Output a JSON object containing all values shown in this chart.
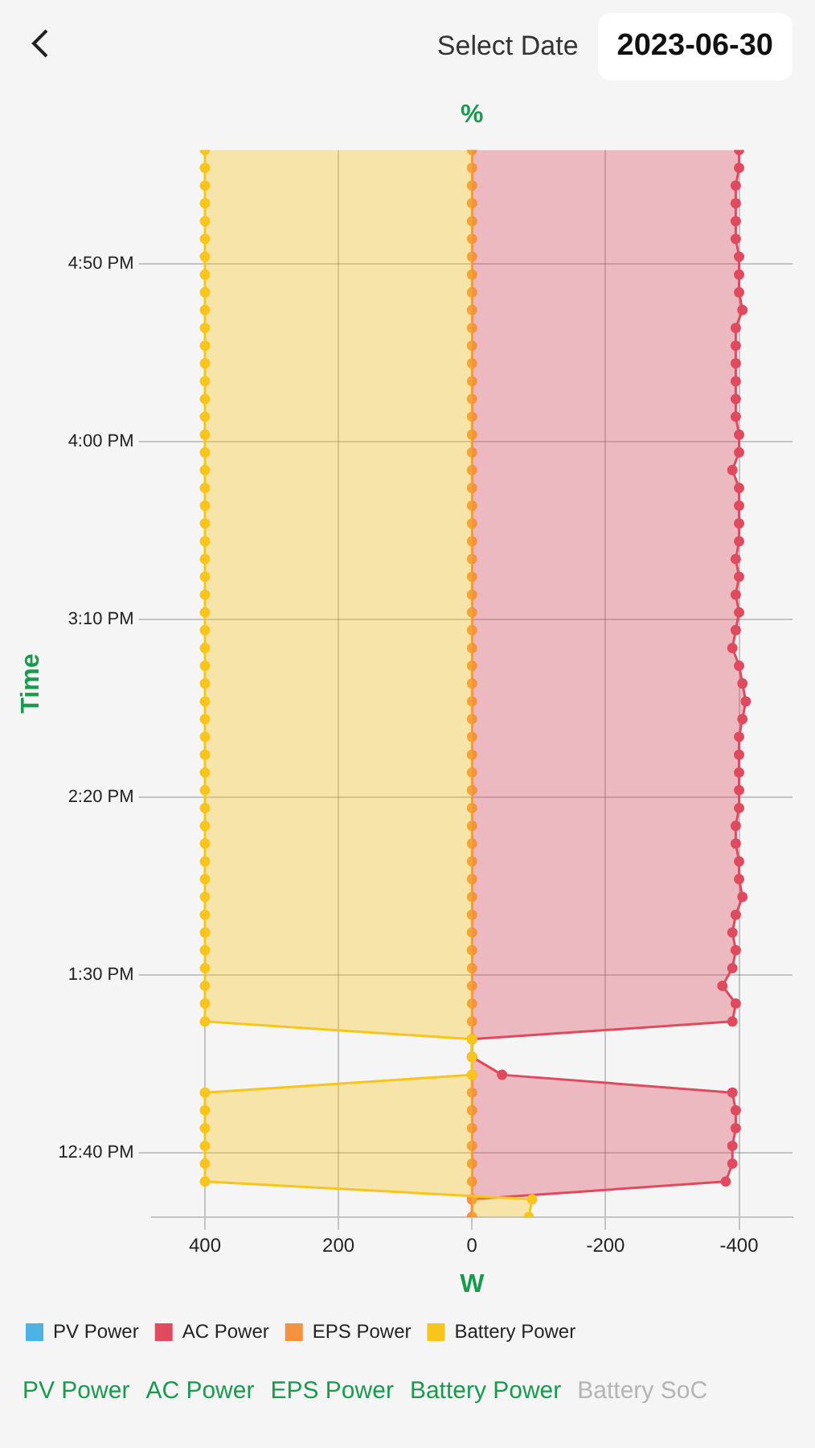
{
  "chart_data": {
    "type": "line",
    "orientation": "horizontal",
    "xlabel": "W",
    "ylabel": "Time",
    "x2label": "%",
    "annotations": [
      "Select Date",
      "2023-06-30",
      "Battery SoC"
    ],
    "x": [
      12.367,
      12.45,
      12.533,
      12.617,
      12.7,
      12.783,
      12.867,
      12.95,
      13.033,
      13.117,
      13.2,
      13.283,
      13.367,
      13.45,
      13.533,
      13.617,
      13.7,
      13.783,
      13.867,
      13.95,
      14.033,
      14.117,
      14.2,
      14.283,
      14.367,
      14.45,
      14.533,
      14.617,
      14.7,
      14.783,
      14.867,
      14.95,
      15.033,
      15.117,
      15.2,
      15.283,
      15.367,
      15.45,
      15.533,
      15.617,
      15.7,
      15.783,
      15.867,
      15.95,
      16.033,
      16.117,
      16.2,
      16.283,
      16.367,
      16.45,
      16.533,
      16.617,
      16.7,
      16.783,
      16.867,
      16.95,
      17.033,
      17.117,
      17.2,
      17.283,
      17.367
    ],
    "series": [
      {
        "name": "PV Power",
        "color": "#4db3e6",
        "values": [
          null,
          null,
          null,
          null,
          null,
          null,
          null,
          null,
          null,
          null,
          null,
          null,
          null,
          null,
          null,
          null,
          null,
          null,
          null,
          null,
          null,
          null,
          null,
          null,
          null,
          null,
          null,
          null,
          null,
          null,
          null,
          null,
          null,
          null,
          null,
          null,
          null,
          null,
          null,
          null,
          null,
          null,
          null,
          null,
          null,
          null,
          null,
          null,
          null,
          null,
          null,
          null,
          null,
          null,
          null,
          null,
          null,
          null,
          null,
          null,
          null
        ]
      },
      {
        "name": "AC Power",
        "color": "#e04a5f",
        "values": [
          0,
          0,
          -380,
          -390,
          -390,
          -395,
          -395,
          -390,
          -45,
          0,
          0,
          -390,
          -395,
          -375,
          -390,
          -395,
          -390,
          -395,
          -405,
          -400,
          -400,
          -395,
          -395,
          -400,
          -400,
          -400,
          -400,
          -400,
          -405,
          -410,
          -405,
          -400,
          -390,
          -395,
          -400,
          -395,
          -400,
          -395,
          -400,
          -400,
          -400,
          -400,
          -390,
          -400,
          -400,
          -395,
          -395,
          -395,
          -395,
          -395,
          -395,
          -405,
          -400,
          -400,
          -400,
          -395,
          -395,
          -395,
          -395,
          -400,
          -400
        ]
      },
      {
        "name": "EPS Power",
        "color": "#f5923e",
        "values": [
          0,
          0,
          0,
          0,
          0,
          0,
          0,
          0,
          0,
          0,
          0,
          0,
          0,
          0,
          0,
          0,
          0,
          0,
          0,
          0,
          0,
          0,
          0,
          0,
          0,
          0,
          0,
          0,
          0,
          0,
          0,
          0,
          0,
          0,
          0,
          0,
          0,
          0,
          0,
          0,
          0,
          0,
          0,
          0,
          0,
          0,
          0,
          0,
          0,
          0,
          0,
          0,
          0,
          0,
          0,
          0,
          0,
          0,
          0,
          0,
          0
        ]
      },
      {
        "name": "Battery Power",
        "color": "#f8c51c",
        "values": [
          -85,
          -90,
          400,
          400,
          400,
          400,
          400,
          400,
          0,
          0,
          0,
          400,
          400,
          400,
          400,
          400,
          400,
          400,
          400,
          400,
          400,
          400,
          400,
          400,
          400,
          400,
          400,
          400,
          400,
          400,
          400,
          400,
          400,
          400,
          400,
          400,
          400,
          400,
          400,
          400,
          400,
          400,
          400,
          400,
          400,
          400,
          400,
          400,
          400,
          400,
          400,
          400,
          400,
          400,
          400,
          400,
          400,
          400,
          400,
          400,
          400
        ]
      }
    ],
    "ylim": [
      12.367,
      17.367
    ],
    "yticks": [
      {
        "value": 12.667,
        "label": "12:40 PM"
      },
      {
        "value": 13.5,
        "label": "1:30 PM"
      },
      {
        "value": 14.333,
        "label": "2:20 PM"
      },
      {
        "value": 15.167,
        "label": "3:10 PM"
      },
      {
        "value": 16,
        "label": "4:00 PM"
      },
      {
        "value": 16.833,
        "label": "4:50 PM"
      }
    ],
    "xlim": [
      480,
      -480
    ],
    "xticks": [
      400,
      200,
      0,
      -200,
      -400
    ],
    "grid": true,
    "legend": "bottom",
    "marker": "circle",
    "line_style": "solid"
  }
}
